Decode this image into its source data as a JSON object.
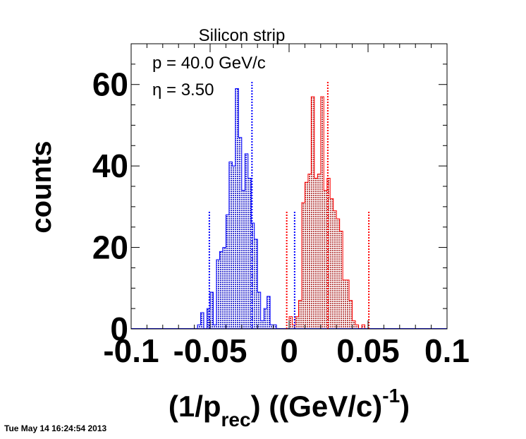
{
  "chart_data": {
    "type": "histogram",
    "title": "Silicon strip",
    "annotations": [
      "p = 40.0 GeV/c",
      "η = 3.50"
    ],
    "xlabel": {
      "main": "(1/p",
      "sub": "rec",
      "after": ") ((GeV/c)",
      "sup": "-1",
      "close": ")"
    },
    "ylabel": "counts",
    "xlim": [
      -0.1,
      0.1
    ],
    "ylim": [
      0,
      70
    ],
    "xticks": [
      {
        "value": -0.1,
        "label": "-0.1"
      },
      {
        "value": -0.05,
        "label": "-0.05"
      },
      {
        "value": 0,
        "label": "0"
      },
      {
        "value": 0.05,
        "label": "0.05"
      },
      {
        "value": 0.1,
        "label": "0.1"
      }
    ],
    "yticks": [
      {
        "value": 0,
        "label": "0"
      },
      {
        "value": 20,
        "label": "20"
      },
      {
        "value": 40,
        "label": "40"
      },
      {
        "value": 60,
        "label": "60"
      }
    ],
    "bin_width": 0.002,
    "series": [
      {
        "color": "#0000ff",
        "fill": "#7a7ad8",
        "first_bin_low": -0.058,
        "counts": [
          1,
          4,
          0,
          5,
          9,
          1,
          17,
          19,
          20,
          28,
          41,
          40,
          59,
          47,
          34,
          43,
          37,
          26,
          22,
          9,
          2,
          5,
          8,
          1,
          1
        ],
        "lines": [
          {
            "x": -0.0505,
            "height": 29
          },
          {
            "x": -0.0235,
            "height": 61
          },
          {
            "x": 0.0035,
            "height": 29
          }
        ]
      },
      {
        "color": "#ff0000",
        "fill": "#c98a8a",
        "first_bin_low": 0.0,
        "counts": [
          3,
          1,
          3,
          7,
          31,
          36,
          38,
          57,
          37,
          38,
          57,
          34,
          37,
          32,
          29,
          27,
          24,
          12,
          12,
          7,
          2,
          1,
          0,
          1
        ],
        "lines": [
          {
            "x": -0.0015,
            "height": 29
          },
          {
            "x": 0.0245,
            "height": 61
          },
          {
            "x": 0.0505,
            "height": 29
          }
        ]
      }
    ],
    "footer": "Tue May 14 16:24:54 2013"
  }
}
